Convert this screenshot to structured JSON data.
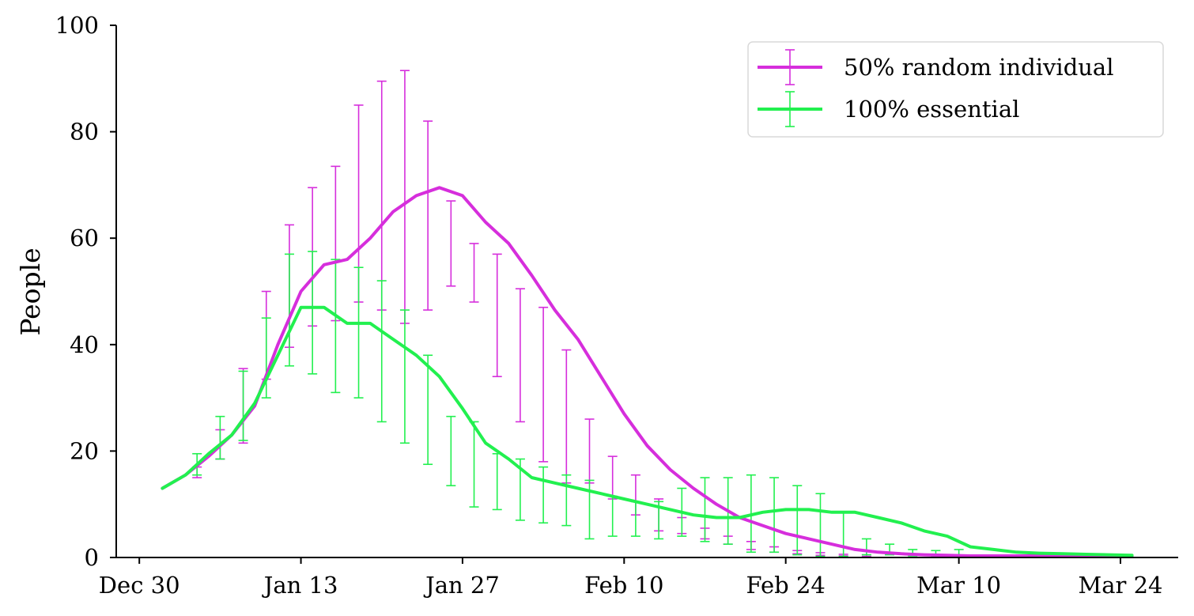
{
  "chart_data": {
    "type": "line",
    "title": "",
    "xlabel": "",
    "ylabel": "People",
    "ylim": [
      0,
      100
    ],
    "yticks": [
      0,
      20,
      40,
      60,
      80,
      100
    ],
    "xlim": [
      "2019-12-28",
      "2020-03-29"
    ],
    "xticks": [
      {
        "date": "2019-12-30",
        "label": "Dec 30"
      },
      {
        "date": "2020-01-13",
        "label": "Jan 13"
      },
      {
        "date": "2020-01-27",
        "label": "Jan 27"
      },
      {
        "date": "2020-02-10",
        "label": "Feb 10"
      },
      {
        "date": "2020-02-24",
        "label": "Feb 24"
      },
      {
        "date": "2020-03-10",
        "label": "Mar 10"
      },
      {
        "date": "2020-03-24",
        "label": "Mar 24"
      }
    ],
    "grid": false,
    "legend_position": "top-right",
    "series": [
      {
        "name": "50% random individual",
        "color": "#d62edc",
        "x": [
          "2020-01-01",
          "2020-01-03",
          "2020-01-05",
          "2020-01-07",
          "2020-01-09",
          "2020-01-11",
          "2020-01-13",
          "2020-01-15",
          "2020-01-17",
          "2020-01-19",
          "2020-01-21",
          "2020-01-23",
          "2020-01-25",
          "2020-01-27",
          "2020-01-29",
          "2020-01-31",
          "2020-02-02",
          "2020-02-04",
          "2020-02-06",
          "2020-02-08",
          "2020-02-10",
          "2020-02-12",
          "2020-02-14",
          "2020-02-16",
          "2020-02-18",
          "2020-02-20",
          "2020-02-22",
          "2020-02-24",
          "2020-02-26",
          "2020-02-28",
          "2020-03-01",
          "2020-03-03",
          "2020-03-05",
          "2020-03-07",
          "2020-03-09",
          "2020-03-11",
          "2020-03-13",
          "2020-03-15",
          "2020-03-17",
          "2020-03-19",
          "2020-03-21",
          "2020-03-23",
          "2020-03-25"
        ],
        "values": [
          13,
          15.5,
          19,
          23,
          28.5,
          40,
          50,
          55,
          56,
          60,
          65,
          68,
          69.5,
          68,
          63,
          59,
          53,
          46.5,
          41,
          34,
          27,
          21,
          16.5,
          13,
          10,
          7.5,
          6,
          4.5,
          3.5,
          2.5,
          1.5,
          1,
          0.7,
          0.5,
          0.4,
          0.3,
          0.3,
          0.3,
          0.3,
          0.3,
          0.3,
          0.3,
          0.3
        ],
        "errorbars": [
          {
            "date": "2020-01-04",
            "y": 16,
            "low": 15,
            "high": 17
          },
          {
            "date": "2020-01-06",
            "y": 21,
            "low": 18.5,
            "high": 24
          },
          {
            "date": "2020-01-08",
            "y": 28,
            "low": 21.5,
            "high": 35.5
          },
          {
            "date": "2020-01-10",
            "y": 42,
            "low": 33.5,
            "high": 50
          },
          {
            "date": "2020-01-12",
            "y": 51,
            "low": 39.5,
            "high": 62.5
          },
          {
            "date": "2020-01-14",
            "y": 56.5,
            "low": 43.5,
            "high": 69.5
          },
          {
            "date": "2020-01-16",
            "y": 59,
            "low": 44.5,
            "high": 73.5
          },
          {
            "date": "2020-01-18",
            "y": 66.5,
            "low": 48,
            "high": 85
          },
          {
            "date": "2020-01-20",
            "y": 68,
            "low": 46.5,
            "high": 89.5
          },
          {
            "date": "2020-01-22",
            "y": 68,
            "low": 44,
            "high": 91.5
          },
          {
            "date": "2020-01-24",
            "y": 64,
            "low": 46.5,
            "high": 82
          },
          {
            "date": "2020-01-26",
            "y": 59.5,
            "low": 51,
            "high": 67
          },
          {
            "date": "2020-01-28",
            "y": 54,
            "low": 48,
            "high": 59
          },
          {
            "date": "2020-01-30",
            "y": 45.5,
            "low": 34,
            "high": 57
          },
          {
            "date": "2020-02-01",
            "y": 38,
            "low": 25.5,
            "high": 50.5
          },
          {
            "date": "2020-02-03",
            "y": 33,
            "low": 18,
            "high": 47
          },
          {
            "date": "2020-02-05",
            "y": 26.5,
            "low": 14,
            "high": 39
          },
          {
            "date": "2020-02-07",
            "y": 20,
            "low": 14,
            "high": 26
          },
          {
            "date": "2020-02-09",
            "y": 15,
            "low": 11,
            "high": 19
          },
          {
            "date": "2020-02-11",
            "y": 11,
            "low": 8,
            "high": 15.5
          },
          {
            "date": "2020-02-13",
            "y": 8,
            "low": 5,
            "high": 11
          },
          {
            "date": "2020-02-15",
            "y": 6,
            "low": 4.5,
            "high": 7.5
          },
          {
            "date": "2020-02-17",
            "y": 4.5,
            "low": 3.5,
            "high": 5.5
          },
          {
            "date": "2020-02-19",
            "y": 3.5,
            "low": 2.5,
            "high": 4
          },
          {
            "date": "2020-02-21",
            "y": 2.5,
            "low": 1.5,
            "high": 3
          },
          {
            "date": "2020-02-23",
            "y": 1.5,
            "low": 1,
            "high": 2
          },
          {
            "date": "2020-02-25",
            "y": 1,
            "low": 0.7,
            "high": 1.3
          },
          {
            "date": "2020-02-27",
            "y": 0.6,
            "low": 0.4,
            "high": 0.9
          },
          {
            "date": "2020-02-29",
            "y": 0.4,
            "low": 0.3,
            "high": 0.6
          },
          {
            "date": "2020-03-02",
            "y": 0.3,
            "low": 0.2,
            "high": 0.5
          }
        ]
      },
      {
        "name": "100% essential",
        "color": "#22f04f",
        "x": [
          "2020-01-01",
          "2020-01-03",
          "2020-01-05",
          "2020-01-07",
          "2020-01-09",
          "2020-01-11",
          "2020-01-13",
          "2020-01-15",
          "2020-01-17",
          "2020-01-19",
          "2020-01-21",
          "2020-01-23",
          "2020-01-25",
          "2020-01-27",
          "2020-01-29",
          "2020-01-31",
          "2020-02-02",
          "2020-02-04",
          "2020-02-06",
          "2020-02-08",
          "2020-02-10",
          "2020-02-12",
          "2020-02-14",
          "2020-02-16",
          "2020-02-18",
          "2020-02-20",
          "2020-02-22",
          "2020-02-24",
          "2020-02-26",
          "2020-02-28",
          "2020-03-01",
          "2020-03-03",
          "2020-03-05",
          "2020-03-07",
          "2020-03-09",
          "2020-03-11",
          "2020-03-13",
          "2020-03-15",
          "2020-03-17",
          "2020-03-19",
          "2020-03-21",
          "2020-03-23",
          "2020-03-25"
        ],
        "values": [
          13,
          15.5,
          19.5,
          23,
          29,
          38,
          47,
          47,
          44,
          44,
          41,
          38,
          34,
          28,
          21.5,
          18.5,
          15,
          14,
          13,
          12,
          11,
          10,
          9,
          8,
          7.5,
          7.5,
          8.5,
          9,
          9,
          8.5,
          8.5,
          7.5,
          6.5,
          5,
          4,
          2,
          1.5,
          1,
          0.8,
          0.7,
          0.6,
          0.5,
          0.4
        ],
        "errorbars": [
          {
            "date": "2020-01-04",
            "y": 17,
            "low": 15.5,
            "high": 19.5
          },
          {
            "date": "2020-01-06",
            "y": 22,
            "low": 18.5,
            "high": 26.5
          },
          {
            "date": "2020-01-08",
            "y": 28.5,
            "low": 22,
            "high": 35
          },
          {
            "date": "2020-01-10",
            "y": 38,
            "low": 30,
            "high": 45
          },
          {
            "date": "2020-01-12",
            "y": 46.5,
            "low": 36,
            "high": 57
          },
          {
            "date": "2020-01-14",
            "y": 46,
            "low": 34.5,
            "high": 57.5
          },
          {
            "date": "2020-01-16",
            "y": 43.5,
            "low": 31,
            "high": 56
          },
          {
            "date": "2020-01-18",
            "y": 42,
            "low": 30,
            "high": 54.5
          },
          {
            "date": "2020-01-20",
            "y": 38.5,
            "low": 25.5,
            "high": 52
          },
          {
            "date": "2020-01-22",
            "y": 34,
            "low": 21.5,
            "high": 46.5
          },
          {
            "date": "2020-01-24",
            "y": 27.5,
            "low": 17.5,
            "high": 38
          },
          {
            "date": "2020-01-26",
            "y": 20,
            "low": 13.5,
            "high": 26.5
          },
          {
            "date": "2020-01-28",
            "y": 17.5,
            "low": 9.5,
            "high": 25.5
          },
          {
            "date": "2020-01-30",
            "y": 14,
            "low": 9,
            "high": 19.5
          },
          {
            "date": "2020-02-01",
            "y": 13,
            "low": 7,
            "high": 18.5
          },
          {
            "date": "2020-02-03",
            "y": 12,
            "low": 6.5,
            "high": 17
          },
          {
            "date": "2020-02-05",
            "y": 11,
            "low": 6,
            "high": 15.5
          },
          {
            "date": "2020-02-07",
            "y": 9,
            "low": 3.5,
            "high": 14.5
          },
          {
            "date": "2020-02-09",
            "y": 8,
            "low": 4,
            "high": 11.5
          },
          {
            "date": "2020-02-11",
            "y": 7.5,
            "low": 4,
            "high": 10.5
          },
          {
            "date": "2020-02-13",
            "y": 7,
            "low": 3.5,
            "high": 10.5
          },
          {
            "date": "2020-02-15",
            "y": 8.5,
            "low": 4,
            "high": 13
          },
          {
            "date": "2020-02-17",
            "y": 9,
            "low": 3,
            "high": 15
          },
          {
            "date": "2020-02-19",
            "y": 8.5,
            "low": 2.5,
            "high": 15
          },
          {
            "date": "2020-02-21",
            "y": 8.5,
            "low": 1,
            "high": 15.5
          },
          {
            "date": "2020-02-23",
            "y": 8,
            "low": 1,
            "high": 15
          },
          {
            "date": "2020-02-25",
            "y": 7,
            "low": 0.5,
            "high": 13.5
          },
          {
            "date": "2020-02-27",
            "y": 6,
            "low": 0.2,
            "high": 12
          },
          {
            "date": "2020-02-29",
            "y": 4.5,
            "low": 0.2,
            "high": 8.5
          },
          {
            "date": "2020-03-02",
            "y": 2,
            "low": 0.5,
            "high": 3.5
          },
          {
            "date": "2020-03-04",
            "y": 1.5,
            "low": 0.5,
            "high": 2.5
          },
          {
            "date": "2020-03-06",
            "y": 1,
            "low": 0.3,
            "high": 1.5
          },
          {
            "date": "2020-03-08",
            "y": 0.8,
            "low": 0.2,
            "high": 1.3
          },
          {
            "date": "2020-03-10",
            "y": 0.7,
            "low": 0.1,
            "high": 1.5
          }
        ]
      }
    ]
  }
}
